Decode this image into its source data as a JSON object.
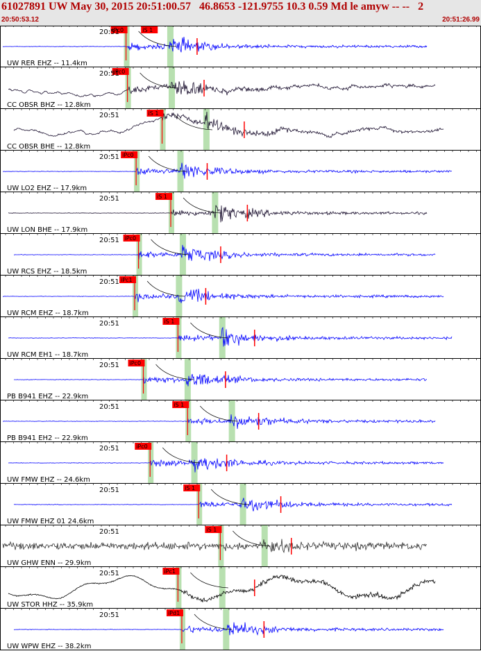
{
  "header": {
    "title": "61027891 UW May 30, 2015 20:51:00.57   46.8653 -121.9755 10.3 0.59 Md le amyw -- --   2",
    "start_time": "20:50:53.12",
    "end_time": "20:51:26.99"
  },
  "colors": {
    "header_bg": "#e6e6e6",
    "header_text": "#b00000",
    "pick_red": "#ff0000",
    "window_green": "#b8e0b0",
    "trace_blue": "#0000ff",
    "trace_dark": "#1a0f2e",
    "trace_gray": "#333333",
    "trace_black": "#000000"
  },
  "traces": [
    {
      "label": "UW RER EHZ -- 11.4km",
      "time": "20:51",
      "color": "#0000ff",
      "picks": [
        {
          "label": "iPc0",
          "x": 0.262
        },
        {
          "label": "iS 1",
          "x": 0.325
        }
      ]
    },
    {
      "label": "CC OBSR BHZ -- 12.8km",
      "time": "20:51",
      "color": "#1a0f2e",
      "picks": [
        {
          "label": "iPc0",
          "x": 0.265
        }
      ]
    },
    {
      "label": "CC OBSR BHE -- 12.8km",
      "time": "20:51",
      "color": "#1a0f2e",
      "picks": [
        {
          "label": "iS 1",
          "x": 0.337
        }
      ]
    },
    {
      "label": "UW LO2 EHZ -- 17.9km",
      "time": "20:51",
      "color": "#0000ff",
      "picks": [
        {
          "label": "iPc0",
          "x": 0.283
        }
      ]
    },
    {
      "label": "UW LON BHE -- 17.9km",
      "time": "20:51",
      "color": "#1a0f2e",
      "picks": [
        {
          "label": "iS 1",
          "x": 0.355
        }
      ]
    },
    {
      "label": "UW RCS EHZ -- 18.5km",
      "time": "20:51",
      "color": "#0000ff",
      "picks": [
        {
          "label": "iPc0",
          "x": 0.288
        }
      ]
    },
    {
      "label": "UW RCM EHZ -- 18.7km",
      "time": "20:51",
      "color": "#0000ff",
      "picks": [
        {
          "label": "iPc1",
          "x": 0.28
        }
      ]
    },
    {
      "label": "UW RCM EH1 -- 18.7km",
      "time": "20:51",
      "color": "#0000ff",
      "picks": [
        {
          "label": "iS 1",
          "x": 0.37
        }
      ]
    },
    {
      "label": "PB B941 EHZ -- 22.9km",
      "time": "20:51",
      "color": "#0000ff",
      "picks": [
        {
          "label": "iPc0",
          "x": 0.298
        }
      ]
    },
    {
      "label": "PB B941 EH2 -- 22.9km",
      "time": "20:51",
      "color": "#0000ff",
      "picks": [
        {
          "label": "iS 1",
          "x": 0.39
        }
      ]
    },
    {
      "label": "UW FMW EHZ -- 24.6km",
      "time": "20:51",
      "color": "#0000ff",
      "picks": [
        {
          "label": "iPc0",
          "x": 0.312
        }
      ]
    },
    {
      "label": "UW FMW EHZ 01 24.6km",
      "time": "20:51",
      "color": "#0000ff",
      "picks": [
        {
          "label": "iS 1",
          "x": 0.413
        }
      ]
    },
    {
      "label": "UW GHW ENN -- 29.9km",
      "time": "20:51",
      "color": "#333333",
      "picks": [
        {
          "label": "iS 1",
          "x": 0.458
        }
      ]
    },
    {
      "label": "UW STOR HHZ -- 35.9km",
      "time": "20:51",
      "color": "#000000",
      "picks": [
        {
          "label": "iPc1",
          "x": 0.37
        }
      ]
    },
    {
      "label": "UW WPW EHZ -- 38.2km",
      "time": "20:51",
      "color": "#0000ff",
      "picks": [
        {
          "label": "iPd1",
          "x": 0.378
        }
      ]
    }
  ]
}
